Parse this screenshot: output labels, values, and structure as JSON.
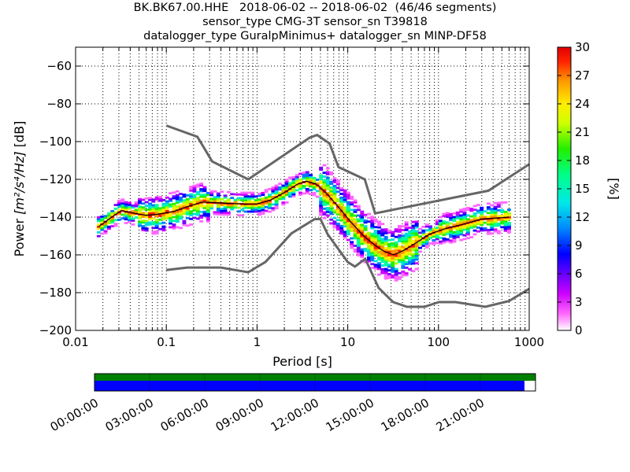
{
  "title_lines": [
    "BK.BK67.00.HHE   2018-06-02 -- 2018-06-02  (46/46 segments)",
    "sensor_type CMG-3T sensor_sn T39818",
    "datalogger_type GuralpMinimus+ datalogger_sn MINP-DF58"
  ],
  "chart_data": {
    "type": "heatmap",
    "xlabel": "Period [s]",
    "ylabel_prefix": "Power ",
    "ylabel_math": "[m²/s⁴/Hz]",
    "ylabel_suffix": " [dB]",
    "xscale": "log",
    "xlim": [
      0.01,
      1000
    ],
    "ylim": [
      -200,
      -50
    ],
    "x_ticks": [
      0.01,
      0.1,
      1,
      10,
      100,
      1000
    ],
    "x_tick_labels": [
      "0.01",
      "0.1",
      "1",
      "10",
      "100",
      "1000"
    ],
    "y_ticks": [
      -200,
      -180,
      -160,
      -140,
      -120,
      -100,
      -80,
      -60
    ],
    "y_tick_labels": [
      "−200",
      "−180",
      "−160",
      "−140",
      "−120",
      "−100",
      "−80",
      "−60"
    ],
    "grid": true,
    "colorbar": {
      "label": "[%]",
      "min": 0,
      "max": 30,
      "ticks": [
        0,
        3,
        6,
        9,
        12,
        15,
        18,
        21,
        24,
        27,
        30
      ]
    },
    "new_high_noise_model": [
      [
        0.1,
        -91.5
      ],
      [
        0.22,
        -97.4
      ],
      [
        0.32,
        -110.5
      ],
      [
        0.8,
        -120
      ],
      [
        3.8,
        -97.9
      ],
      [
        4.6,
        -96.5
      ],
      [
        6.3,
        -101
      ],
      [
        7.9,
        -113.5
      ],
      [
        15.4,
        -120
      ],
      [
        20,
        -138
      ],
      [
        354.8,
        -126
      ],
      [
        1000,
        -112
      ]
    ],
    "new_low_noise_model": [
      [
        0.1,
        -168
      ],
      [
        0.17,
        -166.7
      ],
      [
        0.4,
        -166.7
      ],
      [
        0.8,
        -169.2
      ],
      [
        1.24,
        -163.7
      ],
      [
        2.4,
        -148.6
      ],
      [
        4.3,
        -141.1
      ],
      [
        5,
        -141
      ],
      [
        6,
        -149
      ],
      [
        10,
        -163.8
      ],
      [
        12,
        -166.2
      ],
      [
        15.6,
        -162.1
      ],
      [
        21.9,
        -177.5
      ],
      [
        31.6,
        -185
      ],
      [
        45,
        -187.5
      ],
      [
        70,
        -187.5
      ],
      [
        101,
        -185
      ],
      [
        154,
        -185
      ],
      [
        328,
        -187.5
      ],
      [
        600,
        -184.4
      ],
      [
        1000,
        -178
      ]
    ],
    "mean_psd": [
      [
        0.018,
        -145
      ],
      [
        0.025,
        -140
      ],
      [
        0.032,
        -136.5
      ],
      [
        0.045,
        -138
      ],
      [
        0.06,
        -139
      ],
      [
        0.08,
        -138.5
      ],
      [
        0.12,
        -137
      ],
      [
        0.17,
        -134.5
      ],
      [
        0.25,
        -132
      ],
      [
        0.4,
        -132.5
      ],
      [
        0.7,
        -133
      ],
      [
        1,
        -133
      ],
      [
        1.4,
        -131
      ],
      [
        2,
        -127
      ],
      [
        2.8,
        -122.5
      ],
      [
        3.5,
        -121
      ],
      [
        4.5,
        -122.5
      ],
      [
        6,
        -128
      ],
      [
        8,
        -135
      ],
      [
        11,
        -143
      ],
      [
        15,
        -150
      ],
      [
        20,
        -155
      ],
      [
        25,
        -158
      ],
      [
        32,
        -160
      ],
      [
        40,
        -158
      ],
      [
        55,
        -154
      ],
      [
        80,
        -149
      ],
      [
        120,
        -146
      ],
      [
        180,
        -144
      ],
      [
        300,
        -141
      ],
      [
        600,
        -140
      ]
    ],
    "time_bar": {
      "tick_labels": [
        "00:00:00",
        "03:00:00",
        "06:00:00",
        "09:00:00",
        "12:00:00",
        "15:00:00",
        "18:00:00",
        "21:00:00"
      ],
      "tick_hours": [
        0,
        3,
        6,
        9,
        12,
        15,
        18,
        21
      ],
      "span_hours": 24,
      "data_coverage_end_hour": 24,
      "segments_coverage_end_hour": 23.4,
      "data_color": "#008000",
      "segments_color": "#0000ff"
    }
  }
}
